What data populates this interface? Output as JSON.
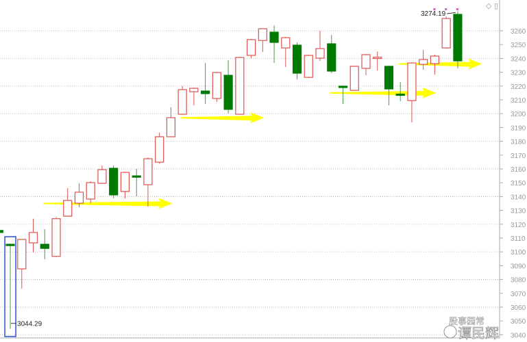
{
  "chart_data": {
    "type": "candlestick",
    "title": "",
    "xlabel": "",
    "ylabel": "",
    "ylim": [
      3040,
      3270
    ],
    "y_ticks": [
      3040,
      3050,
      3060,
      3070,
      3080,
      3090,
      3100,
      3110,
      3120,
      3130,
      3140,
      3150,
      3160,
      3170,
      3180,
      3190,
      3200,
      3210,
      3220,
      3230,
      3240,
      3250,
      3260
    ],
    "grid": "horizontal dotted every 20",
    "colors": {
      "up": "#d9534f",
      "down": "#007a00",
      "arrow": "#ffff00",
      "highlight_box": "#2a4fcf",
      "axis": "#999999"
    },
    "candles": [
      {
        "o": 3115.5,
        "h": 3116.5,
        "l": 3113.5,
        "c": 3114
      },
      {
        "o": 3105.5,
        "h": 3106,
        "l": 3044.29,
        "c": 3105
      },
      {
        "o": 3087.7,
        "h": 3109,
        "l": 3073.4,
        "c": 3109
      },
      {
        "o": 3106.5,
        "h": 3124,
        "l": 3099.6,
        "c": 3114
      },
      {
        "o": 3105.5,
        "h": 3116.4,
        "l": 3094.7,
        "c": 3102.5
      },
      {
        "o": 3096.7,
        "h": 3125.3,
        "l": 3096.2,
        "c": 3124
      },
      {
        "o": 3125.8,
        "h": 3146,
        "l": 3125.3,
        "c": 3137.2
      },
      {
        "o": 3135.2,
        "h": 3149.6,
        "l": 3132.3,
        "c": 3143.2
      },
      {
        "o": 3138.2,
        "h": 3151,
        "l": 3135.2,
        "c": 3150.1
      },
      {
        "o": 3149.6,
        "h": 3162.5,
        "l": 3149.1,
        "c": 3159.5
      },
      {
        "o": 3160.5,
        "h": 3162.5,
        "l": 3138.7,
        "c": 3141.2
      },
      {
        "o": 3143.7,
        "h": 3158,
        "l": 3138.7,
        "c": 3157.5
      },
      {
        "o": 3155,
        "h": 3160,
        "l": 3140.2,
        "c": 3154.2
      },
      {
        "o": 3148.6,
        "h": 3168.4,
        "l": 3132.8,
        "c": 3167.4
      },
      {
        "o": 3164.9,
        "h": 3186.2,
        "l": 3163.9,
        "c": 3183.3
      },
      {
        "o": 3183.3,
        "h": 3204.6,
        "l": 3183,
        "c": 3197.1
      },
      {
        "o": 3199.6,
        "h": 3219.9,
        "l": 3199.3,
        "c": 3217.4
      },
      {
        "o": 3215.9,
        "h": 3218.9,
        "l": 3206,
        "c": 3218.4
      },
      {
        "o": 3216.4,
        "h": 3236.7,
        "l": 3207,
        "c": 3214.5
      },
      {
        "o": 3211,
        "h": 3230.3,
        "l": 3208.5,
        "c": 3229.8
      },
      {
        "o": 3227.8,
        "h": 3238.7,
        "l": 3200.1,
        "c": 3203.1
      },
      {
        "o": 3199.6,
        "h": 3241.2,
        "l": 3199.3,
        "c": 3240.7
      },
      {
        "o": 3242.2,
        "h": 3254.1,
        "l": 3240.2,
        "c": 3253.6
      },
      {
        "o": 3253,
        "h": 3261.5,
        "l": 3244.7,
        "c": 3261.5
      },
      {
        "o": 3259,
        "h": 3264,
        "l": 3236.7,
        "c": 3251.6
      },
      {
        "o": 3247.6,
        "h": 3255.5,
        "l": 3233.8,
        "c": 3255
      },
      {
        "o": 3249.6,
        "h": 3251.6,
        "l": 3224.9,
        "c": 3229.3
      },
      {
        "o": 3226.3,
        "h": 3242.7,
        "l": 3225.8,
        "c": 3242.2
      },
      {
        "o": 3240.2,
        "h": 3260,
        "l": 3238.2,
        "c": 3247.1
      },
      {
        "o": 3250.6,
        "h": 3257,
        "l": 3229.3,
        "c": 3230.8
      },
      {
        "o": 3219.9,
        "h": 3220.4,
        "l": 3207,
        "c": 3219.4
      },
      {
        "o": 3216.9,
        "h": 3234.8,
        "l": 3216.4,
        "c": 3234.3
      },
      {
        "o": 3232.8,
        "h": 3243.2,
        "l": 3227.8,
        "c": 3242.7
      },
      {
        "o": 3240.5,
        "h": 3245,
        "l": 3231.3,
        "c": 3240.9
      },
      {
        "o": 3234.3,
        "h": 3234.8,
        "l": 3206,
        "c": 3217.9
      },
      {
        "o": 3214.2,
        "h": 3222.9,
        "l": 3209,
        "c": 3213.8
      },
      {
        "o": 3209.5,
        "h": 3237.2,
        "l": 3193.7,
        "c": 3236.7
      },
      {
        "o": 3235.7,
        "h": 3246,
        "l": 3231.8,
        "c": 3239.2
      },
      {
        "o": 3236.2,
        "h": 3242.7,
        "l": 3228.3,
        "c": 3241.7
      },
      {
        "o": 3247.6,
        "h": 3270.4,
        "l": 3247.1,
        "c": 3268.9
      },
      {
        "o": 3271.9,
        "h": 3274.19,
        "l": 3232.8,
        "c": 3238.2
      }
    ],
    "annotations": {
      "high_label": "3274.19",
      "low_label": "3044.29"
    },
    "arrows": [
      {
        "from_candle": 4,
        "to_candle": 15,
        "price": 3135
      },
      {
        "from_candle": 16,
        "to_candle": 23,
        "price": 3197
      },
      {
        "from_candle": 29,
        "to_candle": 38,
        "price": 3215
      },
      {
        "from_candle": 35,
        "to_candle": 42,
        "price": 3236
      }
    ],
    "highlight_candle": 1
  },
  "watermark": {
    "line1": "股事园常",
    "line2": "谭民辉"
  },
  "toolbar": {
    "icons": [
      "diamond-icon",
      "window-icon"
    ]
  }
}
